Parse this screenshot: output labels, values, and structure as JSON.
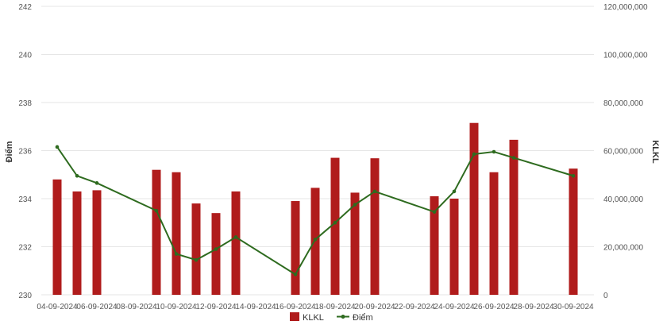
{
  "chart_data": {
    "type": "bar",
    "grid": true,
    "legend_position": "bottom-center",
    "ylabel_left": "Điểm",
    "ylabel_right": "KLKL",
    "ylim_left": [
      230,
      242
    ],
    "ylim_right": [
      0,
      120000000
    ],
    "left_ticks": [
      "230",
      "232",
      "234",
      "236",
      "238",
      "240",
      "242"
    ],
    "right_ticks": [
      "0",
      "20,000,000",
      "40,000,000",
      "60,000,000",
      "80,000,000",
      "100,000,000",
      "120,000,000"
    ],
    "x_tick_labels": [
      "04-09-2024",
      "06-09-2024",
      "08-09-2024",
      "10-09-2024",
      "12-09-2024",
      "14-09-2024",
      "16-09-2024",
      "18-09-2024",
      "20-09-2024",
      "22-09-2024",
      "24-09-2024",
      "26-09-2024",
      "28-09-2024",
      "30-09-2024"
    ],
    "x_start_date": "2024-09-04",
    "series": [
      {
        "name": "KLKL",
        "kind": "bar",
        "axis": "right",
        "color": "#b01c1c",
        "points": [
          {
            "x": "2024-09-04",
            "y": 48000000
          },
          {
            "x": "2024-09-05",
            "y": 43000000
          },
          {
            "x": "2024-09-06",
            "y": 43500000
          },
          {
            "x": "2024-09-09",
            "y": 52000000
          },
          {
            "x": "2024-09-10",
            "y": 51000000
          },
          {
            "x": "2024-09-11",
            "y": 38000000
          },
          {
            "x": "2024-09-12",
            "y": 34000000
          },
          {
            "x": "2024-09-13",
            "y": 43000000
          },
          {
            "x": "2024-09-16",
            "y": 39000000
          },
          {
            "x": "2024-09-17",
            "y": 44500000
          },
          {
            "x": "2024-09-18",
            "y": 57000000
          },
          {
            "x": "2024-09-19",
            "y": 42500000
          },
          {
            "x": "2024-09-20",
            "y": 56800000
          },
          {
            "x": "2024-09-23",
            "y": 41000000
          },
          {
            "x": "2024-09-24",
            "y": 40000000
          },
          {
            "x": "2024-09-25",
            "y": 71500000
          },
          {
            "x": "2024-09-26",
            "y": 51000000
          },
          {
            "x": "2024-09-27",
            "y": 64500000
          },
          {
            "x": "2024-09-30",
            "y": 52500000
          }
        ]
      },
      {
        "name": "Điểm",
        "kind": "line",
        "axis": "left",
        "color": "#2e6b1f",
        "points": [
          {
            "x": "2024-09-04",
            "y": 236.15
          },
          {
            "x": "2024-09-05",
            "y": 234.95
          },
          {
            "x": "2024-09-06",
            "y": 234.65
          },
          {
            "x": "2024-09-09",
            "y": 233.5
          },
          {
            "x": "2024-09-10",
            "y": 231.7
          },
          {
            "x": "2024-09-11",
            "y": 231.45
          },
          {
            "x": "2024-09-12",
            "y": 231.9
          },
          {
            "x": "2024-09-13",
            "y": 232.4
          },
          {
            "x": "2024-09-16",
            "y": 230.85
          },
          {
            "x": "2024-09-17",
            "y": 232.3
          },
          {
            "x": "2024-09-18",
            "y": 233.0
          },
          {
            "x": "2024-09-19",
            "y": 233.75
          },
          {
            "x": "2024-09-20",
            "y": 234.3
          },
          {
            "x": "2024-09-23",
            "y": 233.45
          },
          {
            "x": "2024-09-24",
            "y": 234.3
          },
          {
            "x": "2024-09-25",
            "y": 235.85
          },
          {
            "x": "2024-09-26",
            "y": 235.95
          },
          {
            "x": "2024-09-27",
            "y": 235.7
          },
          {
            "x": "2024-09-30",
            "y": 234.95
          }
        ]
      }
    ]
  }
}
